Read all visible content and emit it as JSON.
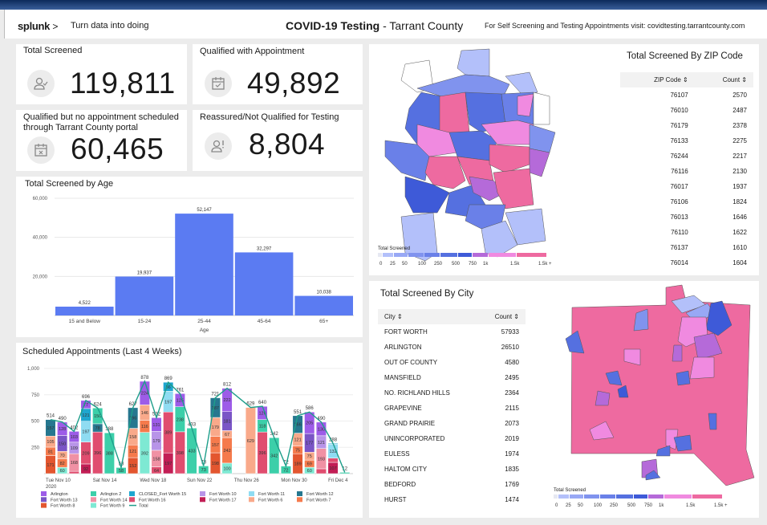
{
  "header": {
    "logo": "splunk",
    "logo_chevron": ">",
    "tagline": "Turn data into doing",
    "title_bold": "COVID-19 Testing",
    "title_rest": " - Tarrant County",
    "visit_text": "For Self Screening and Testing Appointments visit: covidtesting.tarrantcounty.com"
  },
  "kpis": [
    {
      "title": "Total Screened",
      "value": "119,811",
      "icon": "user-check-icon"
    },
    {
      "title": "Qualified with Appointment",
      "value": "49,892",
      "icon": "calendar-check-icon"
    },
    {
      "title": "Qualified but no appointment scheduled through Tarrant County portal",
      "value": "60,465",
      "icon": "calendar-x-icon"
    },
    {
      "title": "Reassured/Not Qualified for Testing",
      "value": "8,804",
      "icon": "user-alert-icon"
    }
  ],
  "chart_data": [
    {
      "type": "bar",
      "title": "Total Screened by Age",
      "xlabel": "Age",
      "ylabel": "",
      "categories": [
        "15 and Below",
        "15-24",
        "25-44",
        "45-64",
        "65+"
      ],
      "values": [
        4522,
        19937,
        52147,
        32297,
        10038
      ],
      "value_labels": [
        "4,522",
        "19,937",
        "52,147",
        "32,297",
        "10,038"
      ],
      "ylim": [
        0,
        60000
      ],
      "yticks": [
        "20,000",
        "40,000",
        "60,000"
      ],
      "ytick_values": [
        20000,
        40000,
        60000
      ],
      "grid": true,
      "color": "#5b7bf2"
    },
    {
      "type": "bar",
      "stacked": true,
      "title": "Scheduled Appointments (Last 4 Weeks)",
      "ylim": [
        0,
        1000
      ],
      "yticks": [
        "250",
        "500",
        "750",
        "1,000"
      ],
      "ytick_values": [
        250,
        500,
        750,
        1000
      ],
      "grid": true,
      "legend": "bottom",
      "categories": [
        "Nov 10",
        "Nov 11",
        "Nov 12",
        "Nov 13",
        "Nov 14",
        "Nov 15",
        "Nov 16",
        "Nov 17",
        "Nov 18",
        "Nov 19",
        "Nov 20",
        "Nov 21",
        "Nov 22",
        "Nov 23",
        "Nov 24",
        "Nov 25",
        "Nov 26",
        "Nov 27",
        "Nov 28",
        "Nov 29",
        "Nov 30",
        "Dec 1",
        "Dec 2",
        "Dec 3",
        "Dec 4",
        "Dec 5"
      ],
      "xticks": [
        "Tue Nov 10",
        "Sat Nov 14",
        "Wed Nov 18",
        "Sun Nov 22",
        "Thu Nov 26",
        "Mon Nov 30",
        "Fri Dec 4"
      ],
      "xtick_year": "2020",
      "series": [
        {
          "name": "Arlington",
          "color": "#9d5ce8",
          "values": [
            0,
            128,
            103,
            77,
            0,
            0,
            0,
            0,
            224,
            131,
            0,
            125,
            0,
            0,
            0,
            222,
            0,
            0,
            126,
            0,
            0,
            0,
            205,
            130,
            0,
            0
          ]
        },
        {
          "name": "Arlington 2",
          "color": "#3ccfa9",
          "values": [
            0,
            0,
            0,
            0,
            150,
            388,
            58,
            0,
            0,
            0,
            0,
            238,
            433,
            73,
            0,
            0,
            0,
            0,
            118,
            342,
            72,
            0,
            0,
            0,
            0,
            12
          ]
        },
        {
          "name": "CLOSED_Fort Worth 15",
          "color": "#1fa6cf",
          "values": [
            0,
            0,
            0,
            121,
            0,
            0,
            0,
            0,
            0,
            0,
            86,
            0,
            0,
            0,
            0,
            0,
            0,
            0,
            0,
            0,
            0,
            0,
            0,
            0,
            9,
            0
          ]
        },
        {
          "name": "Fort Worth 10",
          "color": "#b894e8",
          "values": [
            0,
            0,
            109,
            0,
            0,
            0,
            0,
            0,
            0,
            179,
            0,
            0,
            0,
            0,
            0,
            0,
            0,
            0,
            0,
            0,
            0,
            0,
            0,
            121,
            0,
            0
          ]
        },
        {
          "name": "Fort Worth 11",
          "color": "#8fdcf2",
          "values": [
            0,
            0,
            0,
            197,
            0,
            0,
            0,
            0,
            0,
            0,
            197,
            0,
            0,
            0,
            0,
            0,
            0,
            0,
            0,
            0,
            0,
            0,
            0,
            0,
            132,
            0
          ]
        },
        {
          "name": "Fort Worth 12",
          "color": "#26778f",
          "values": [
            157,
            0,
            0,
            0,
            78,
            0,
            0,
            196,
            0,
            0,
            0,
            0,
            0,
            0,
            187,
            0,
            0,
            0,
            0,
            0,
            0,
            166,
            0,
            0,
            0,
            0
          ]
        },
        {
          "name": "Fort Worth 13",
          "color": "#7a55c6",
          "values": [
            0,
            150,
            0,
            0,
            0,
            0,
            0,
            0,
            0,
            0,
            0,
            0,
            0,
            0,
            0,
            181,
            0,
            0,
            0,
            0,
            0,
            0,
            177,
            0,
            0,
            0
          ]
        },
        {
          "name": "Fort Worth 14",
          "color": "#f091a4",
          "values": [
            0,
            0,
            168,
            0,
            0,
            0,
            0,
            0,
            0,
            158,
            0,
            0,
            0,
            0,
            0,
            0,
            0,
            0,
            0,
            0,
            0,
            0,
            0,
            193,
            0,
            0
          ]
        },
        {
          "name": "Fort Worth 16",
          "color": "#e04d6f",
          "values": [
            0,
            0,
            22,
            209,
            396,
            0,
            0,
            0,
            0,
            64,
            389,
            398,
            0,
            0,
            0,
            0,
            0,
            0,
            396,
            0,
            0,
            0,
            0,
            46,
            40,
            0
          ]
        },
        {
          "name": "Fort Worth 17",
          "color": "#c21e55",
          "values": [
            0,
            0,
            0,
            92,
            0,
            0,
            0,
            0,
            0,
            0,
            197,
            0,
            0,
            0,
            0,
            0,
            0,
            0,
            0,
            0,
            0,
            0,
            0,
            0,
            107,
            0
          ]
        },
        {
          "name": "Fort Worth 6",
          "color": "#f9a98a",
          "values": [
            105,
            70,
            0,
            0,
            0,
            0,
            0,
            158,
            146,
            0,
            0,
            0,
            0,
            0,
            179,
            67,
            0,
            629,
            0,
            0,
            0,
            121,
            75,
            0,
            0,
            0
          ]
        },
        {
          "name": "Fort Worth 7",
          "color": "#f57a4c",
          "values": [
            81,
            82,
            0,
            0,
            0,
            0,
            0,
            121,
            116,
            0,
            0,
            0,
            0,
            0,
            157,
            242,
            0,
            0,
            0,
            0,
            0,
            75,
            69,
            0,
            0,
            0
          ]
        },
        {
          "name": "Fort Worth 8",
          "color": "#e3562f",
          "values": [
            171,
            0,
            0,
            0,
            0,
            0,
            0,
            152,
            0,
            0,
            0,
            0,
            0,
            0,
            198,
            0,
            0,
            0,
            0,
            0,
            0,
            189,
            0,
            0,
            0,
            0
          ]
        },
        {
          "name": "Fort Worth 9",
          "color": "#7ee9d3",
          "values": [
            0,
            60,
            0,
            0,
            0,
            0,
            0,
            0,
            392,
            0,
            0,
            0,
            0,
            0,
            0,
            100,
            0,
            0,
            0,
            0,
            0,
            0,
            60,
            0,
            0,
            0
          ]
        }
      ],
      "total": {
        "name": "Total",
        "color": "#1e9e8a",
        "values": [
          514,
          490,
          402,
          696,
          624,
          388,
          58,
          627,
          878,
          532,
          869,
          761,
          433,
          73,
          721,
          812,
          null,
          629,
          640,
          342,
          72,
          551,
          586,
          490,
          288,
          12
        ]
      }
    }
  ],
  "zip_panel": {
    "title": "Total Screened By ZIP Code",
    "col_zip": "ZIP Code",
    "col_count": "Count",
    "sort_icon": "sort-icon",
    "rows": [
      [
        "76107",
        "2570"
      ],
      [
        "76010",
        "2487"
      ],
      [
        "76179",
        "2378"
      ],
      [
        "76133",
        "2275"
      ],
      [
        "76244",
        "2217"
      ],
      [
        "76116",
        "2130"
      ],
      [
        "76017",
        "1937"
      ],
      [
        "76106",
        "1824"
      ],
      [
        "76013",
        "1646"
      ],
      [
        "76110",
        "1622"
      ],
      [
        "76137",
        "1610"
      ],
      [
        "76014",
        "1604"
      ]
    ]
  },
  "city_panel": {
    "title": "Total Screened By City",
    "col_city": "City",
    "col_count": "Count",
    "rows": [
      [
        "FORT WORTH",
        "57933"
      ],
      [
        "ARLINGTON",
        "26510"
      ],
      [
        "OUT OF COUNTY",
        "4580"
      ],
      [
        "MANSFIELD",
        "2495"
      ],
      [
        "NO. RICHLAND HILLS",
        "2364"
      ],
      [
        "GRAPEVINE",
        "2115"
      ],
      [
        "GRAND PRAIRIE",
        "2073"
      ],
      [
        "UNINCORPORATED",
        "2019"
      ],
      [
        "EULESS",
        "1974"
      ],
      [
        "HALTOM CITY",
        "1835"
      ],
      [
        "BEDFORD",
        "1769"
      ],
      [
        "HURST",
        "1474"
      ]
    ]
  },
  "map_legend": {
    "title": "Total Screened",
    "labels": [
      "0",
      "25",
      "50",
      "100",
      "250",
      "500",
      "750",
      "1k",
      "1.5k",
      "1.5k +"
    ],
    "colors": [
      "#e6e8f2",
      "#b3c0fa",
      "#98a8f5",
      "#8093ee",
      "#6a80e8",
      "#5570e0",
      "#3e5ad8",
      "#b56ad9",
      "#f08ae0",
      "#ee6aa0"
    ]
  }
}
